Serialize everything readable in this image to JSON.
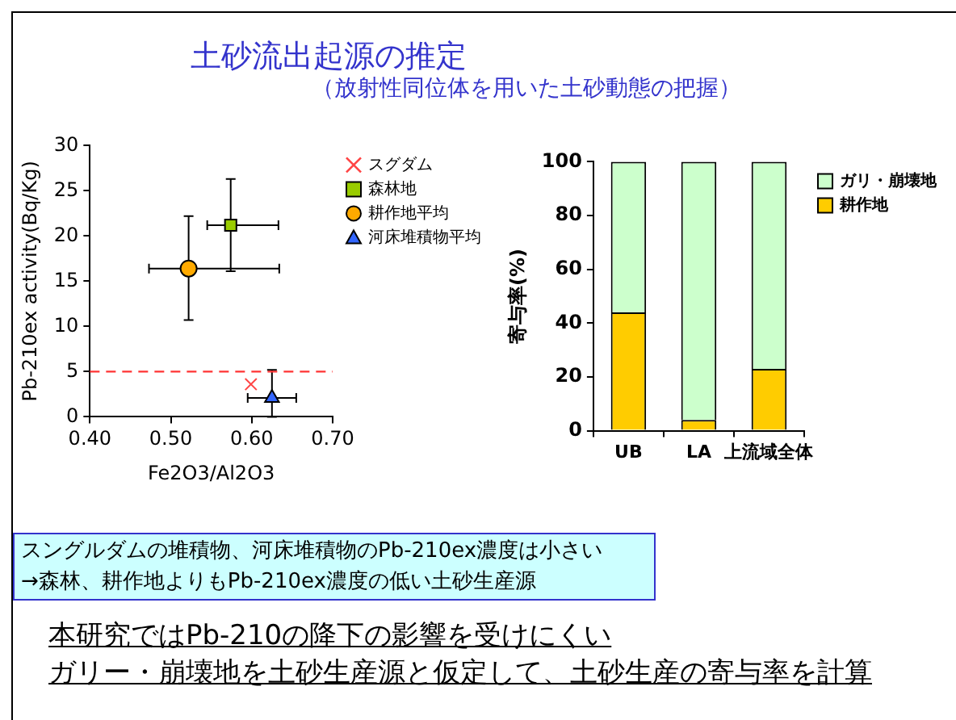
{
  "chart_data": [
    {
      "type": "scatter",
      "title": "土砂流出起源の推定",
      "subtitle": "（放射性同位体を用いた土砂動態の把握）",
      "xlabel": "Fe2O3/Al2O3",
      "ylabel": "Pb-210ex activity(Bq/Kg)",
      "xlim": [
        0.4,
        0.7
      ],
      "xticks": [
        {
          "value": 0.4,
          "label": "0.40"
        },
        {
          "value": 0.5,
          "label": "0.50"
        },
        {
          "value": 0.6,
          "label": "0.60"
        },
        {
          "value": 0.7,
          "label": "0.70"
        }
      ],
      "ylim": [
        0,
        30
      ],
      "yticks": [
        0,
        5,
        10,
        15,
        20,
        25,
        30
      ],
      "grid": false,
      "legend": "right",
      "series": [
        {
          "name": "スグダム",
          "color": "#ff4444",
          "marker": "cross",
          "x": [
            0.599
          ],
          "values": [
            3.6
          ]
        },
        {
          "name": "森林地",
          "color": "#99cc00",
          "marker": "square",
          "x": [
            0.574
          ],
          "values": [
            21.2
          ],
          "errors": [
            [
              16.1,
              26.3
            ]
          ],
          "xerrors": [
            [
              0.545,
              0.633
            ]
          ]
        },
        {
          "name": "耕作地平均",
          "color": "#ffaa00",
          "marker": "circle",
          "x": [
            0.522
          ],
          "values": [
            16.4
          ],
          "errors": [
            [
              10.7,
              22.2
            ]
          ],
          "xerrors": [
            [
              0.473,
              0.634
            ]
          ]
        },
        {
          "name": "河床堆積物平均",
          "color": "#3366ff",
          "marker": "triangle",
          "x": [
            0.625
          ],
          "values": [
            2.1
          ],
          "errors": [
            [
              0,
              5.2
            ]
          ],
          "xerrors": [
            [
              0.595,
              0.655
            ]
          ]
        }
      ],
      "ref_lines": [
        {
          "axis": "y",
          "value": 5,
          "color": "#ff3333",
          "line_style": "dashed"
        }
      ],
      "annotations": [
        "スングルダムの堆積物、河床堆積物のPb-210ex濃度は小さい",
        "→森林、耕作地よりもPb-210ex濃度の低い土砂生産源",
        "本研究ではPb-210の降下の影響を受けにくい",
        "ガリー・崩壊地を土砂生産源と仮定して、土砂生産の寄与率を計算"
      ]
    },
    {
      "type": "bar",
      "stacked": true,
      "categories": [
        "UB",
        "LA",
        "上流域全体"
      ],
      "ylabel": "寄与率(%)",
      "ylim": [
        0,
        100
      ],
      "yticks": [
        0,
        20,
        40,
        60,
        80,
        100
      ],
      "grid": false,
      "legend": "right",
      "series": [
        {
          "name": "耕作地",
          "color": "#ffcc00",
          "values": [
            44,
            4,
            23
          ]
        },
        {
          "name": "ガリ・崩壊地",
          "color": "#ccffcc",
          "values": [
            56,
            96,
            77
          ]
        }
      ]
    }
  ]
}
